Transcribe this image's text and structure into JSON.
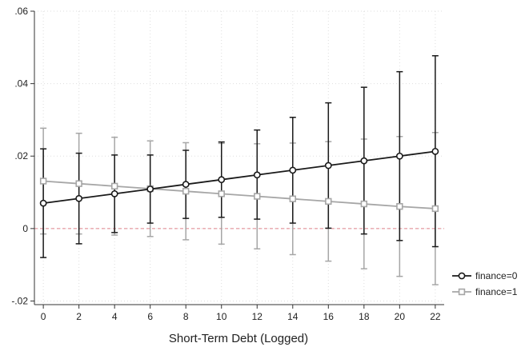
{
  "chart_data": {
    "type": "line",
    "title": "",
    "xlabel": "Short-Term Debt (Logged)",
    "ylabel": "",
    "x": [
      0,
      2,
      4,
      6,
      8,
      10,
      12,
      14,
      16,
      18,
      20,
      22
    ],
    "xlim": [
      -0.5,
      22.5
    ],
    "ylim": [
      -0.021,
      0.06
    ],
    "x_ticks": [
      0,
      2,
      4,
      6,
      8,
      10,
      12,
      14,
      16,
      18,
      20,
      22
    ],
    "x_tick_labels": [
      "0",
      "2",
      "4",
      "6",
      "8",
      "10",
      "12",
      "14",
      "16",
      "18",
      "20",
      "22"
    ],
    "y_ticks": [
      -0.02,
      0,
      0.02,
      0.04,
      0.06
    ],
    "y_tick_labels": [
      "-.02",
      "0",
      ".02",
      ".04",
      ".06"
    ],
    "grid": true,
    "reference_line": {
      "y": 0,
      "color": "#e0828a"
    },
    "legend_position": "bottom-right",
    "series": [
      {
        "name": "finance=0",
        "marker": "circle",
        "color": "#1a1a1a",
        "values": [
          0.007,
          0.0083,
          0.0096,
          0.0109,
          0.0122,
          0.0135,
          0.0148,
          0.0161,
          0.0174,
          0.0187,
          0.02,
          0.0213
        ],
        "ci_lower": [
          -0.008,
          -0.0042,
          -0.0011,
          0.0015,
          0.0028,
          0.0031,
          0.0026,
          0.0015,
          0.0001,
          -0.0015,
          -0.0033,
          -0.005
        ],
        "ci_upper": [
          0.022,
          0.0208,
          0.0203,
          0.0203,
          0.0216,
          0.0239,
          0.0272,
          0.0307,
          0.0347,
          0.039,
          0.0433,
          0.0477
        ]
      },
      {
        "name": "finance=1",
        "marker": "square",
        "color": "#a6a6a6",
        "values": [
          0.0131,
          0.0124,
          0.0117,
          0.011,
          0.0103,
          0.0096,
          0.0089,
          0.0082,
          0.0075,
          0.0068,
          0.0061,
          0.0055
        ],
        "ci_lower": [
          -0.0015,
          -0.0015,
          -0.0018,
          -0.0022,
          -0.0031,
          -0.0043,
          -0.0056,
          -0.0072,
          -0.009,
          -0.0111,
          -0.0132,
          -0.0155
        ],
        "ci_upper": [
          0.0277,
          0.0263,
          0.0252,
          0.0242,
          0.0237,
          0.0235,
          0.0234,
          0.0236,
          0.024,
          0.0247,
          0.0254,
          0.0265
        ]
      }
    ]
  }
}
